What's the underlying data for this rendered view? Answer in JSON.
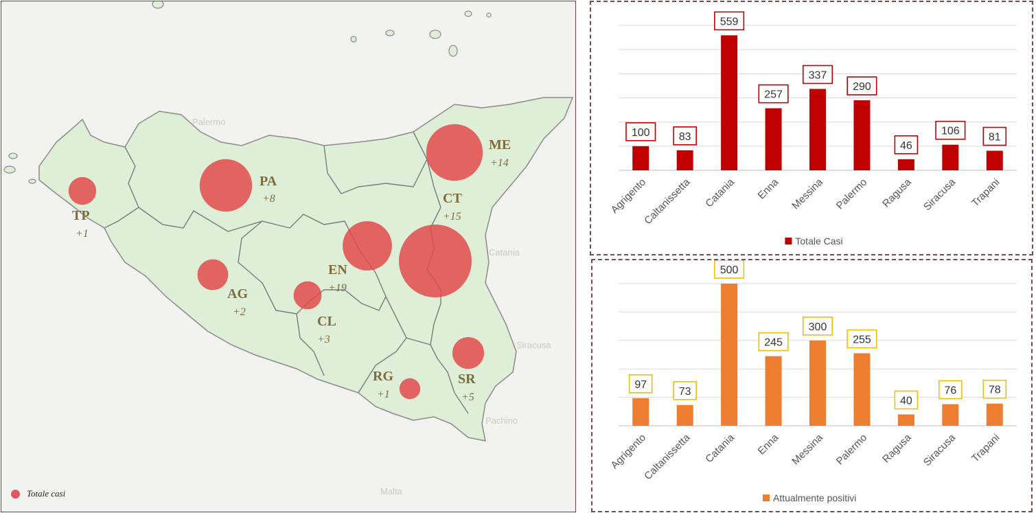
{
  "map": {
    "legend_label": "Totale casi",
    "legend_color": "#e05858",
    "land_color": "#dfeed7",
    "sea_color": "#f2f2f0",
    "bubble_color": "#e24b4b",
    "provinces": [
      {
        "code": "TP",
        "increment": "+1"
      },
      {
        "code": "PA",
        "increment": "+8"
      },
      {
        "code": "ME",
        "increment": "+14"
      },
      {
        "code": "CT",
        "increment": "+15"
      },
      {
        "code": "EN",
        "increment": "+19"
      },
      {
        "code": "AG",
        "increment": "+2"
      },
      {
        "code": "CL",
        "increment": "+3"
      },
      {
        "code": "RG",
        "increment": "+1"
      },
      {
        "code": "SR",
        "increment": "+5"
      }
    ],
    "bubbles": [
      {
        "province": "Agrigento",
        "value": 100
      },
      {
        "province": "Caltanissetta",
        "value": 83
      },
      {
        "province": "Catania",
        "value": 559
      },
      {
        "province": "Enna",
        "value": 257
      },
      {
        "province": "Messina",
        "value": 337
      },
      {
        "province": "Palermo",
        "value": 290
      },
      {
        "province": "Ragusa",
        "value": 46
      },
      {
        "province": "Siracusa",
        "value": 106
      },
      {
        "province": "Trapani",
        "value": 81
      }
    ],
    "faded_city_labels": [
      "Palermo",
      "Catania",
      "Siracusa",
      "Malta",
      "Pachino"
    ]
  },
  "chart_data": [
    {
      "type": "bar",
      "categories": [
        "Agrigento",
        "Caltanissetta",
        "Catania",
        "Enna",
        "Messina",
        "Palermo",
        "Ragusa",
        "Siracusa",
        "Trapani"
      ],
      "series": [
        {
          "name": "Totale Casi",
          "values": [
            100,
            83,
            559,
            257,
            337,
            290,
            46,
            106,
            81
          ]
        }
      ],
      "ylim": [
        0,
        600
      ],
      "grid": true,
      "legend_position": "bottom",
      "color": "#c00000",
      "label_border_color": "#c00000"
    },
    {
      "type": "bar",
      "categories": [
        "Agrigento",
        "Caltanissetta",
        "Catania",
        "Enna",
        "Messina",
        "Palermo",
        "Ragusa",
        "Siracusa",
        "Trapani"
      ],
      "series": [
        {
          "name": "Attualmente positivi",
          "values": [
            97,
            73,
            500,
            245,
            300,
            255,
            40,
            76,
            78
          ]
        }
      ],
      "ylim": [
        0,
        500
      ],
      "grid": true,
      "legend_position": "bottom",
      "color": "#ed7d31",
      "label_border_color": "#f0c000"
    }
  ]
}
